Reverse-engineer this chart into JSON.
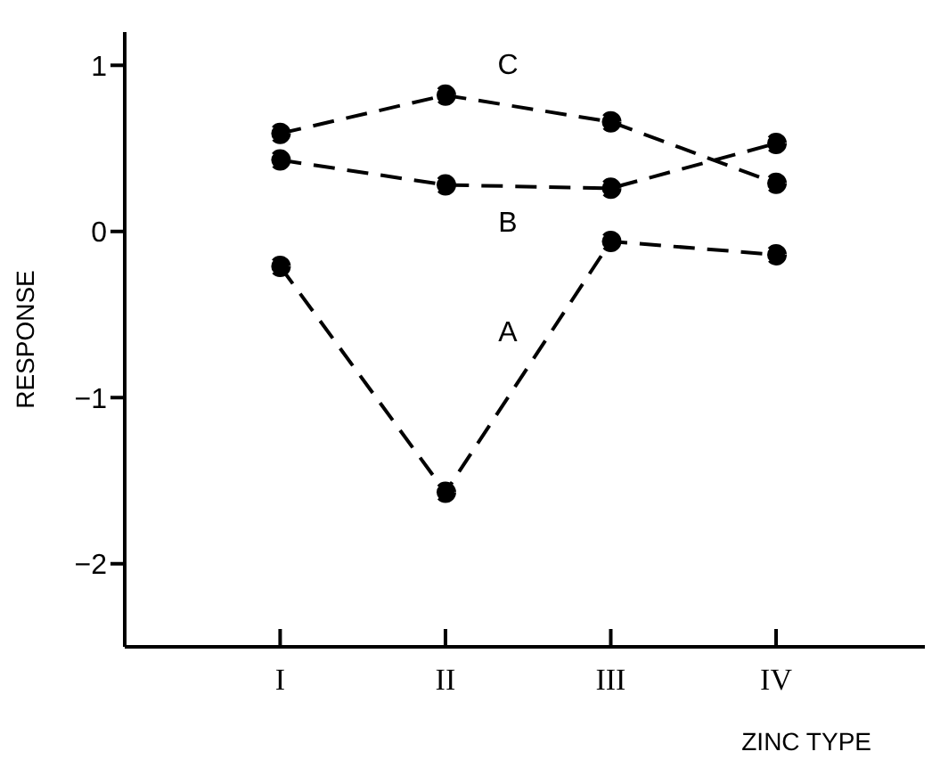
{
  "chart_data": {
    "type": "line",
    "xlabel": "ZINC TYPE",
    "ylabel": "RESPONSE",
    "categories": [
      "I",
      "II",
      "III",
      "IV"
    ],
    "series": [
      {
        "name": "A",
        "color": "#000000",
        "values": [
          -0.21,
          -1.57,
          -0.06,
          -0.14
        ]
      },
      {
        "name": "B",
        "color": "#000000",
        "values": [
          0.43,
          0.28,
          0.26,
          0.53
        ]
      },
      {
        "name": "C",
        "color": "#000000",
        "values": [
          0.59,
          0.82,
          0.66,
          0.29
        ]
      }
    ],
    "ylim": [
      -2.5,
      1.2
    ],
    "yticks": [
      1,
      0,
      -1,
      -2
    ],
    "marker": "circle",
    "line_style": "dashed"
  }
}
